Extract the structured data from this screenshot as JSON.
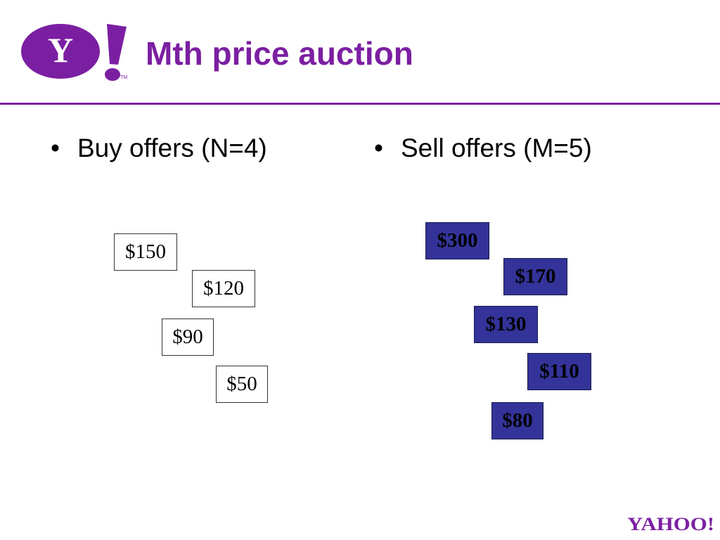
{
  "slide": {
    "title": "Mth price auction",
    "accent_color": "#7b1fa2",
    "sell_box_color": "#333399"
  },
  "logo": {
    "letter": "Y",
    "icon": "yahoo-logo-icon",
    "footer_text": "YAHOO!",
    "footer_icon": "yahoo-wordmark-icon"
  },
  "buy": {
    "heading": "Buy offers (N=4)",
    "bullet": "•",
    "offers": [
      "$150",
      "$120",
      "$90",
      "$50"
    ]
  },
  "sell": {
    "heading": "Sell offers (M=5)",
    "bullet": "•",
    "offers": [
      "$300",
      "$170",
      "$130",
      "$110",
      "$80"
    ]
  }
}
